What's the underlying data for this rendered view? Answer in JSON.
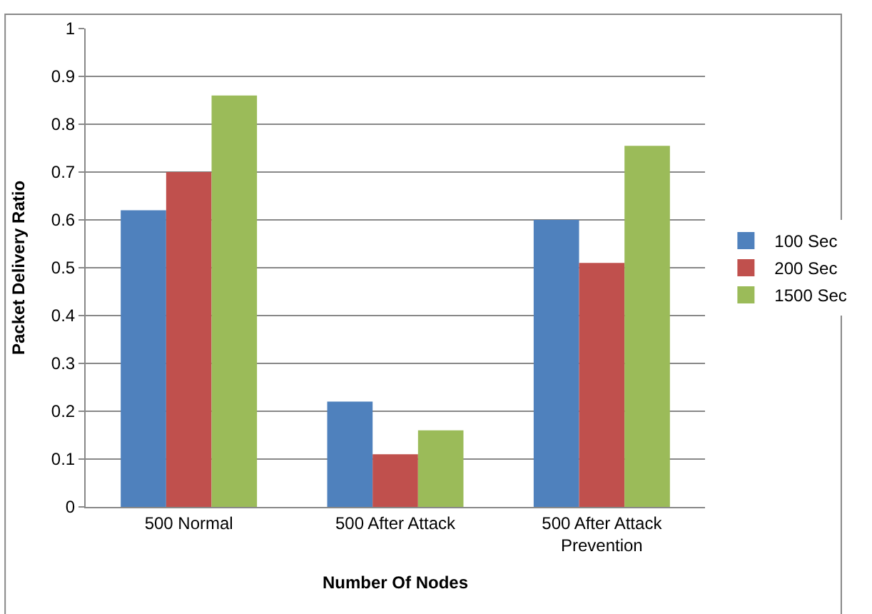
{
  "chart_data": {
    "type": "bar",
    "xlabel": "Number Of Nodes",
    "ylabel": "Packet Delivery Ratio",
    "categories": [
      "500 Normal",
      "500 After Attack",
      "500 After Attack Prevention"
    ],
    "series": [
      {
        "name": "100 Sec",
        "color": "#4f81bd",
        "values": [
          0.62,
          0.22,
          0.6
        ]
      },
      {
        "name": "200 Sec",
        "color": "#c0504d",
        "values": [
          0.7,
          0.11,
          0.51
        ]
      },
      {
        "name": "1500 Sec",
        "color": "#9bbb59",
        "values": [
          0.86,
          0.16,
          0.755
        ]
      }
    ],
    "ylim": [
      0,
      1
    ],
    "yticks": [
      0,
      0.1,
      0.2,
      0.3,
      0.4,
      0.5,
      0.6,
      0.7,
      0.8,
      0.9,
      1
    ],
    "grid": "y",
    "legend": "right"
  }
}
